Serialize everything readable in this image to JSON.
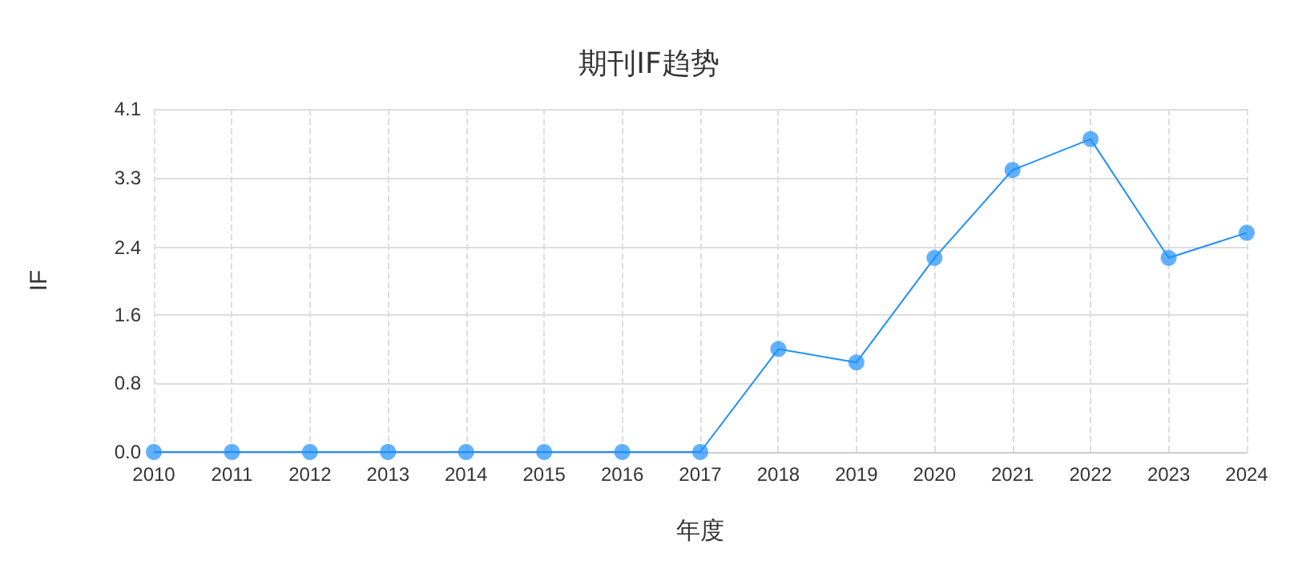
{
  "chart_data": {
    "type": "line",
    "title": "期刊IF趋势",
    "xlabel": "年度",
    "ylabel": "IF",
    "categories": [
      "2010",
      "2011",
      "2012",
      "2013",
      "2014",
      "2015",
      "2016",
      "2017",
      "2018",
      "2019",
      "2020",
      "2021",
      "2022",
      "2023",
      "2024"
    ],
    "series": [
      {
        "color": "#1e90ff",
        "values": [
          0,
          0,
          0,
          0,
          0,
          0,
          0,
          0,
          1.23,
          1.07,
          2.32,
          3.37,
          3.74,
          2.32,
          2.62
        ]
      }
    ],
    "ylim": [
      0,
      4.1
    ],
    "yticks": [
      {
        "value": 0,
        "label": "0.0"
      },
      {
        "value": 0.82,
        "label": "0.8"
      },
      {
        "value": 1.64,
        "label": "1.6"
      },
      {
        "value": 2.44,
        "label": "2.4"
      },
      {
        "value": 3.28,
        "label": "3.3"
      },
      {
        "value": 4.1,
        "label": "4.1"
      }
    ],
    "grid": true,
    "marker": "circle",
    "line_style": "solid"
  }
}
